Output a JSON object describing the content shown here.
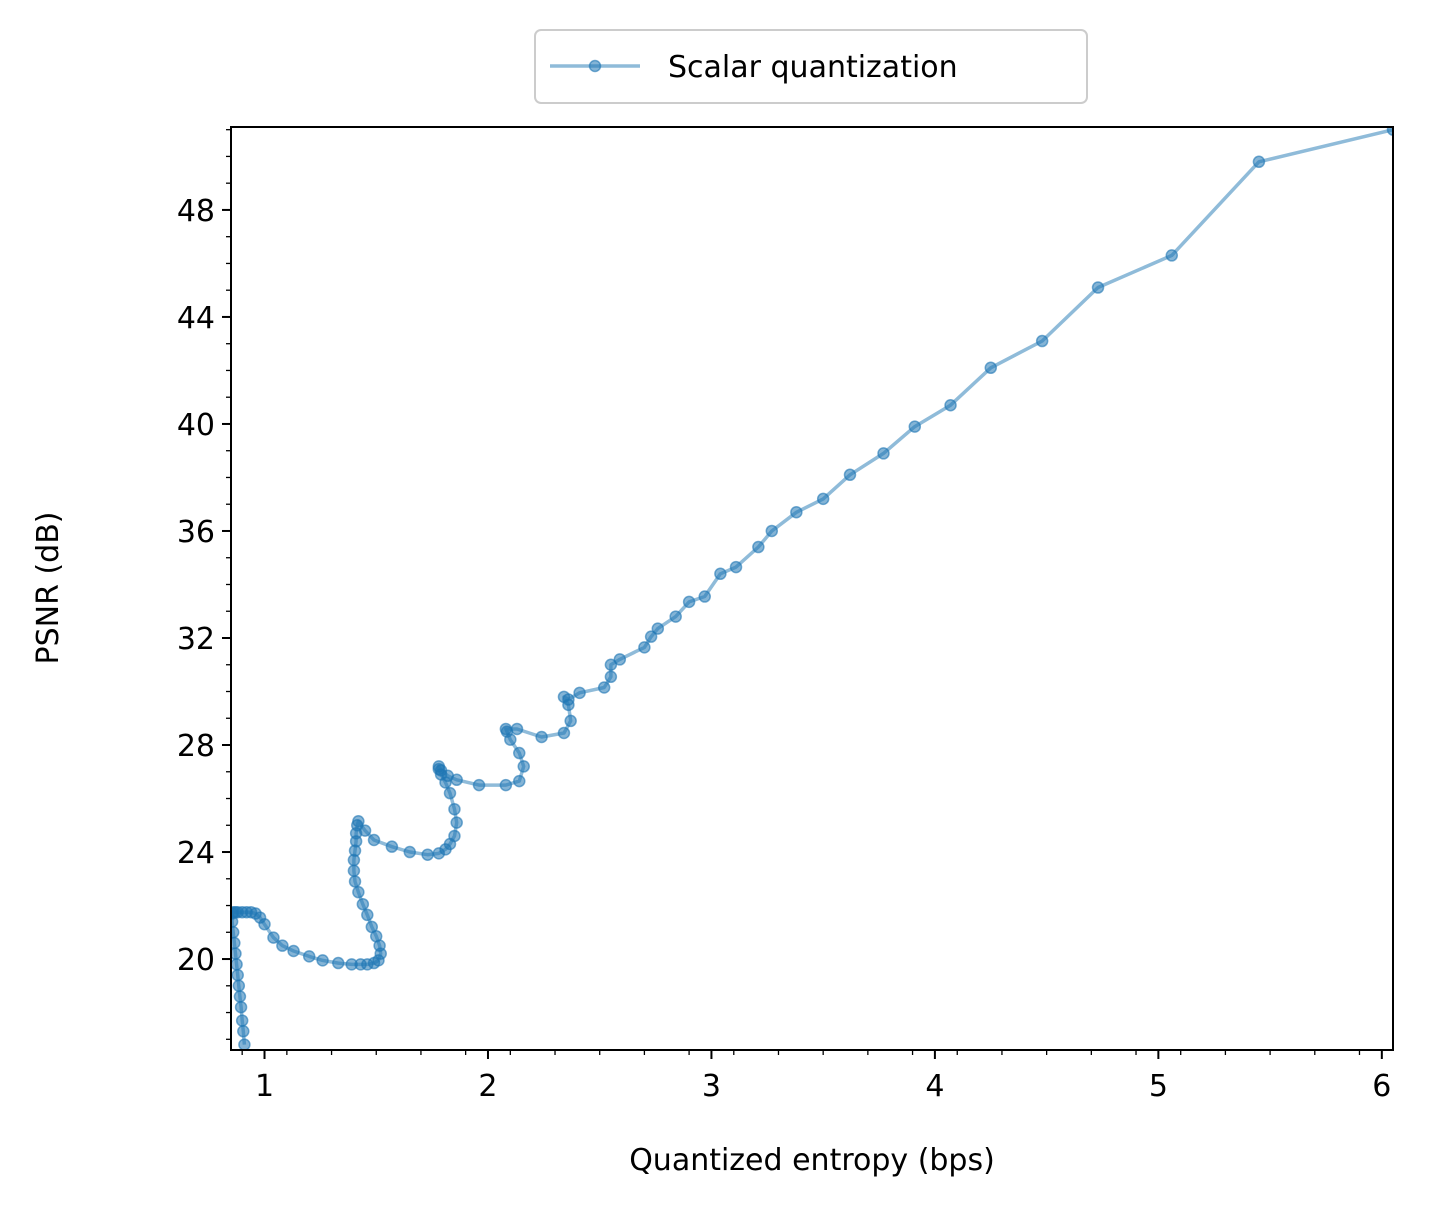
{
  "chart_data": {
    "type": "line",
    "title": "",
    "xlabel": "Quantized entropy (bps)",
    "ylabel": "PSNR (dB)",
    "xlim": [
      0.85,
      6.05
    ],
    "ylim": [
      16.6,
      51.1
    ],
    "xticks": [
      1,
      2,
      3,
      4,
      5,
      6
    ],
    "xtick_labels": [
      "1",
      "2",
      "3",
      "4",
      "5",
      "6"
    ],
    "yticks": [
      20,
      24,
      28,
      32,
      36,
      40,
      44,
      48
    ],
    "ytick_labels": [
      "20",
      "24",
      "28",
      "32",
      "36",
      "40",
      "44",
      "48"
    ],
    "grid": false,
    "legend_position": "top-center-outside",
    "color": "#1f77b4",
    "series": [
      {
        "name": "Scalar quantization",
        "x": [
          0.91,
          0.905,
          0.9,
          0.895,
          0.89,
          0.885,
          0.88,
          0.875,
          0.87,
          0.865,
          0.86,
          0.855,
          0.855,
          0.86,
          0.87,
          0.88,
          0.9,
          0.92,
          0.94,
          0.96,
          0.98,
          1.0,
          1.04,
          1.08,
          1.13,
          1.2,
          1.26,
          1.33,
          1.39,
          1.43,
          1.46,
          1.49,
          1.51,
          1.52,
          1.515,
          1.5,
          1.48,
          1.46,
          1.44,
          1.42,
          1.405,
          1.4,
          1.4,
          1.405,
          1.41,
          1.41,
          1.415,
          1.42,
          1.45,
          1.49,
          1.57,
          1.65,
          1.73,
          1.78,
          1.81,
          1.83,
          1.85,
          1.86,
          1.85,
          1.83,
          1.81,
          1.79,
          1.78,
          1.78,
          1.79,
          1.82,
          1.86,
          1.96,
          2.08,
          2.14,
          2.16,
          2.14,
          2.1,
          2.085,
          2.08,
          2.13,
          2.24,
          2.34,
          2.37,
          2.36,
          2.34,
          2.36,
          2.41,
          2.52,
          2.55,
          2.55,
          2.59,
          2.7,
          2.73,
          2.76,
          2.84,
          2.9,
          2.97,
          3.04,
          3.11,
          3.21,
          3.27,
          3.38,
          3.5,
          3.62,
          3.77,
          3.91,
          4.07,
          4.25,
          4.48,
          4.73,
          5.06,
          5.45,
          6.05
        ],
        "y": [
          16.8,
          17.3,
          17.7,
          18.2,
          18.6,
          19.0,
          19.4,
          19.8,
          20.2,
          20.6,
          21.0,
          21.4,
          21.7,
          21.75,
          21.75,
          21.75,
          21.75,
          21.75,
          21.75,
          21.7,
          21.55,
          21.3,
          20.8,
          20.5,
          20.3,
          20.1,
          19.95,
          19.85,
          19.8,
          19.8,
          19.8,
          19.85,
          19.95,
          20.2,
          20.5,
          20.85,
          21.2,
          21.65,
          22.05,
          22.5,
          22.9,
          23.3,
          23.7,
          24.05,
          24.4,
          24.7,
          25.0,
          25.15,
          24.8,
          24.45,
          24.2,
          24.0,
          23.9,
          23.95,
          24.1,
          24.3,
          24.6,
          25.1,
          25.6,
          26.2,
          26.6,
          26.9,
          27.1,
          27.2,
          27.05,
          26.85,
          26.7,
          26.5,
          26.5,
          26.65,
          27.2,
          27.7,
          28.2,
          28.5,
          28.6,
          28.6,
          28.3,
          28.45,
          28.9,
          29.5,
          29.8,
          29.7,
          29.95,
          30.15,
          30.55,
          31.0,
          31.2,
          31.65,
          32.05,
          32.35,
          32.8,
          33.35,
          33.55,
          34.4,
          34.65,
          35.4,
          36.0,
          36.7,
          37.2,
          38.1,
          38.9,
          39.9,
          40.7,
          42.1,
          43.1,
          45.1,
          46.3,
          49.8,
          51.0
        ]
      }
    ]
  }
}
